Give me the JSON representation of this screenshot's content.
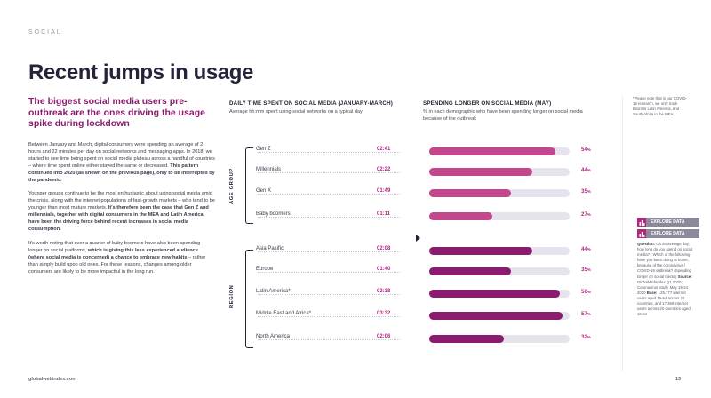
{
  "section": "SOCIAL",
  "title": "Recent jumps in usage",
  "subtitle": "The biggest social media users pre-outbreak are the ones driving the usage spike during lockdown",
  "body": {
    "p1_normal": "Between January and March, digital consumers were spending an average of 2 hours and 22 minutes per day on social networks and messaging apps. In 2018, we started to see time being spent on social media plateau across a handful of countries – where time spent online either stayed the same or decreased. ",
    "p1_bold": "This pattern continued into 2020 (as shown on the previous page), only to be interrupted by the pandemic.",
    "p2_normal": "Younger groups continue to be the most enthusiastic about using social media amid the crisis, along with the internet populations of fast-growth markets – who tend to be younger than most mature markets. ",
    "p2_bold": "It's therefore been the case that Gen Z and millennials, together with digital consumers in the MEA and Latin America, have been the driving force behind recent increases in social media consumption.",
    "p3_normal_a": "It's worth noting that over a quarter of baby boomers have also been spending longer on social platforms, ",
    "p3_bold": "which is giving this less experienced audience (where social media is concerned) a chance to embrace new habits",
    "p3_normal_b": " – rather than simply build upon old ones. For these reasons, changes among older consumers are likely to be more impactful in the long run."
  },
  "left_chart": {
    "heading": "DAILY TIME SPENT ON SOCIAL MEDIA (JANUARY-MARCH)",
    "subheading": "Average hh:mm spent using social networks on a typical day"
  },
  "right_chart": {
    "heading": "SPENDING LONGER ON SOCIAL MEDIA (MAY)",
    "subheading": "% in each demographic who have been spending longer on social media because of the outbreak"
  },
  "group_labels": {
    "age": "AGE GROUP",
    "region": "REGION"
  },
  "pct_suffix": "%",
  "chart_data": {
    "type": "bar",
    "title": "Daily time spent on social media (January-March) and spending longer on social media (May)",
    "categories": [
      "Gen Z",
      "Millennials",
      "Gen X",
      "Baby boomers",
      "Asia Pacific",
      "Europe",
      "Latin America*",
      "Middle East and Africa*",
      "North America"
    ],
    "groups": [
      "age",
      "age",
      "age",
      "age",
      "region",
      "region",
      "region",
      "region",
      "region"
    ],
    "time_spent": [
      "02:41",
      "02:22",
      "01:49",
      "01:11",
      "02:08",
      "01:40",
      "03:38",
      "03:32",
      "02:06"
    ],
    "series": [
      {
        "name": "Spending longer on social media (%)",
        "values": [
          54,
          44,
          35,
          27,
          44,
          35,
          56,
          57,
          32
        ]
      }
    ],
    "ylim": [
      0,
      60
    ]
  },
  "note": "*Please note that in our COVID-19 research, we only track Brazil in Latin America, and South Africa in the MEA",
  "explore_label": "EXPLORE DATA",
  "question": {
    "label": "Question:",
    "text": " On an average day, how long do you spend on social media? | Which of the following have you been doing at home, because of the coronavirus / COVID-19 outbreak? (Spending longer on social media) ",
    "source_label": "Source:",
    "source_text": " GlobalWebIndex Q1 2020; Coronavirus study, May 19-24 2020 ",
    "base_label": "Base:",
    "base_text": " 125,777 internet users aged 16-64 across 20 countries; and 17,369 internet users across 20 countries aged 16-64"
  },
  "footer": {
    "site": "globalwebindex.com",
    "page": "13"
  },
  "colors": {
    "age_bar": "#c2478c",
    "region_bar": "#8a1b6e",
    "track": "#e6e3ec",
    "accent": "#b0287e"
  }
}
